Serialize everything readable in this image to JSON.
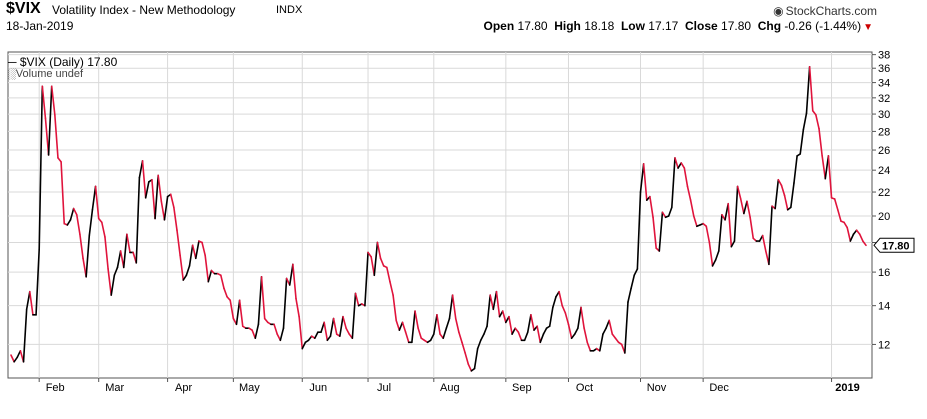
{
  "header": {
    "symbol": "$VIX",
    "name": "Volatility Index - New Methodology",
    "exchange": "INDX",
    "date": "18-Jan-2019",
    "brand": "StockCharts.com",
    "open_label": "Open",
    "open": "17.80",
    "high_label": "High",
    "high": "18.18",
    "low_label": "Low",
    "low": "17.17",
    "close_label": "Close",
    "close": "17.80",
    "chg_label": "Chg",
    "chg": "-0.26 (-1.44%)"
  },
  "legend": {
    "series": "$VIX (Daily) 17.80",
    "volume": "Volume undef"
  },
  "colors": {
    "up": "#000000",
    "down": "#e0143c",
    "grid": "#d9d9d9",
    "frame": "#555555"
  },
  "chart_data": {
    "type": "line",
    "scale": "log",
    "y_ticks": [
      12,
      14,
      16,
      18,
      20,
      22,
      24,
      26,
      28,
      30,
      32,
      34,
      36,
      38
    ],
    "ylim": [
      10.5,
      38.4
    ],
    "x_labels": [
      "Feb",
      "Mar",
      "Apr",
      "May",
      "Jun",
      "Jul",
      "Aug",
      "Sep",
      "Oct",
      "Nov",
      "Dec",
      "2019"
    ],
    "last_value": "17.80",
    "series": [
      {
        "values": [
          11.5,
          11.2,
          11.4,
          11.7,
          11.2,
          13.8,
          14.8,
          13.5,
          13.5,
          17.5,
          33.5,
          29.5,
          25.5,
          33.5,
          29.9,
          25.2,
          24.8,
          19.4,
          19.3,
          19.7,
          20.6,
          20.1,
          18.6,
          16.9,
          15.7,
          18.5,
          20.5,
          22.5,
          19.8,
          19.5,
          18.4,
          16.2,
          14.6,
          15.8,
          16.3,
          17.4,
          16.3,
          18.6,
          17.3,
          17.3,
          16.6,
          23.3,
          24.9,
          21.5,
          22.9,
          23.1,
          19.8,
          23.5,
          21.2,
          19.7,
          21.6,
          21.8,
          20.7,
          18.9,
          17.1,
          15.5,
          15.8,
          16.4,
          17.8,
          16.9,
          18.1,
          18.0,
          17.1,
          15.4,
          16.1,
          15.9,
          15.9,
          15.8,
          15.0,
          14.5,
          14.3,
          13.3,
          13.0,
          14.3,
          12.9,
          12.8,
          12.8,
          12.7,
          12.3,
          13.0,
          15.7,
          13.3,
          13.1,
          13.0,
          13.0,
          12.5,
          12.2,
          12.8,
          15.6,
          15.2,
          16.5,
          14.4,
          13.4,
          11.8,
          12.1,
          12.2,
          12.4,
          12.3,
          12.6,
          12.6,
          13.1,
          12.2,
          12.4,
          13.3,
          12.5,
          12.4,
          13.4,
          12.8,
          12.5,
          12.3,
          14.7,
          14.0,
          14.1,
          14.0,
          17.3,
          17.0,
          15.8,
          18.0,
          16.9,
          16.4,
          16.3,
          15.4,
          14.6,
          13.2,
          12.7,
          13.1,
          12.6,
          12.1,
          12.1,
          13.7,
          12.8,
          12.3,
          12.2,
          12.1,
          12.2,
          12.5,
          13.5,
          12.5,
          12.3,
          12.8,
          13.3,
          14.6,
          13.3,
          12.6,
          12.1,
          11.6,
          11.1,
          10.8,
          10.9,
          11.8,
          12.2,
          12.5,
          12.9,
          14.6,
          13.8,
          14.8,
          13.4,
          13.7,
          13.1,
          13.4,
          12.5,
          12.8,
          12.6,
          12.2,
          12.2,
          12.6,
          13.5,
          12.7,
          12.9,
          12.1,
          12.5,
          12.8,
          12.9,
          13.9,
          14.5,
          14.8,
          14.0,
          13.6,
          13.0,
          12.3,
          12.5,
          12.8,
          13.9,
          12.8,
          12.1,
          11.7,
          11.7,
          11.8,
          11.7,
          12.5,
          12.8,
          13.2,
          12.5,
          12.3,
          12.1,
          12.0,
          11.6,
          14.2,
          15.0,
          15.8,
          16.2,
          22.0,
          24.6,
          21.3,
          21.6,
          19.9,
          17.6,
          17.4,
          20.3,
          19.9,
          20.0,
          20.7,
          25.2,
          24.2,
          24.7,
          24.2,
          22.5,
          21.3,
          20.0,
          19.2,
          19.3,
          19.4,
          19.2,
          18.0,
          16.4,
          16.8,
          17.4,
          20.1,
          19.7,
          21.0,
          17.7,
          18.1,
          22.5,
          21.4,
          20.2,
          21.2,
          19.9,
          18.3,
          18.1,
          18.1,
          18.5,
          17.4,
          16.5,
          20.8,
          20.6,
          23.1,
          22.6,
          21.7,
          20.5,
          20.7,
          22.8,
          25.4,
          25.6,
          28.2,
          30.1,
          36.2,
          30.4,
          29.9,
          28.3,
          25.4,
          23.2,
          25.4,
          21.5,
          21.4,
          20.5,
          19.6,
          19.5,
          19.1,
          18.1,
          18.6,
          18.9,
          18.6,
          18.1,
          17.8
        ]
      }
    ]
  }
}
